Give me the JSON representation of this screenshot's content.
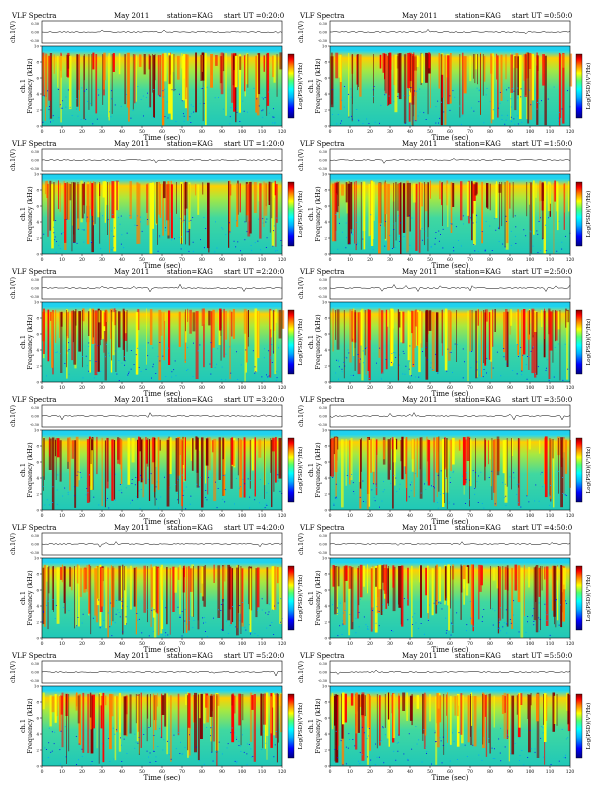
{
  "common": {
    "title_prefix": "VLF Spectra",
    "date": "May 2011",
    "station": "station=KAG",
    "time_prefix": "start UT =",
    "ylabel_top": "ch.1(V)",
    "ylabel_spec_line1": "ch.1",
    "ylabel_spec_line2": "Frequency (kHz)",
    "xlabel": "Time (sec)",
    "colorbar_label": "Log(PSD)(V²/Hz)"
  },
  "panels": [
    {
      "start_ut": "0:20:0"
    },
    {
      "start_ut": "0:50:0"
    },
    {
      "start_ut": "1:20:0"
    },
    {
      "start_ut": "1:50:0"
    },
    {
      "start_ut": "2:20:0"
    },
    {
      "start_ut": "2:50:0"
    },
    {
      "start_ut": "3:20:0"
    },
    {
      "start_ut": "3:50:0"
    },
    {
      "start_ut": "4:20:0"
    },
    {
      "start_ut": "4:50:0"
    },
    {
      "start_ut": "5:20:0"
    },
    {
      "start_ut": "5:50:0"
    }
  ],
  "chart_data": {
    "type": "heatmap",
    "panel_count": 12,
    "x_range": [
      0,
      120
    ],
    "x_ticks": [
      0,
      10,
      20,
      30,
      40,
      50,
      60,
      70,
      80,
      90,
      100,
      110,
      120
    ],
    "freq_range_khz": [
      0,
      10
    ],
    "freq_ticks": [
      0,
      2,
      4,
      6,
      8,
      10
    ],
    "waveform_ticks": [
      "0.30",
      "0.00",
      "-0.30"
    ],
    "colormap": [
      "#00007a",
      "#0000ff",
      "#00a0ff",
      "#00ffff",
      "#40ff80",
      "#ffff00",
      "#ff8000",
      "#ff0000",
      "#800000"
    ],
    "background_color": "#33cc99"
  }
}
